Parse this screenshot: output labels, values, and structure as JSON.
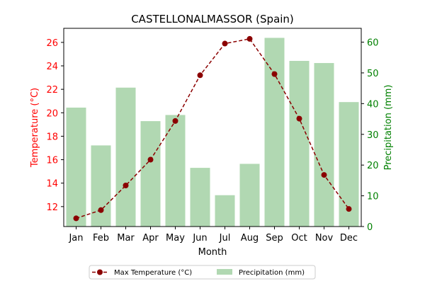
{
  "chart_data": {
    "type": "bar+line",
    "title": "CASTELLONALMASSOR (Spain)",
    "xlabel": "Month",
    "categories": [
      "Jan",
      "Feb",
      "Mar",
      "Apr",
      "May",
      "Jun",
      "Jul",
      "Aug",
      "Sep",
      "Oct",
      "Nov",
      "Dec"
    ],
    "series": [
      {
        "name": "Max Temperature (°C)",
        "kind": "line",
        "axis": "left",
        "color": "#8b0000",
        "values": [
          11.0,
          11.7,
          13.8,
          16.0,
          19.3,
          23.2,
          25.9,
          26.3,
          23.3,
          19.5,
          14.7,
          11.8
        ]
      },
      {
        "name": "Precipitation (mm)",
        "kind": "bar",
        "axis": "right",
        "color": "#b1d8b2",
        "values": [
          38.7,
          26.4,
          45.2,
          34.3,
          36.3,
          19.1,
          10.2,
          20.4,
          61.4,
          53.9,
          53.2,
          40.5
        ]
      }
    ],
    "y_left": {
      "label": "Temperature (°C)",
      "color": "#ff0000",
      "ylim": [
        10.3,
        27.2
      ],
      "ticks": [
        12,
        14,
        16,
        18,
        20,
        22,
        24,
        26
      ]
    },
    "y_right": {
      "label": "Precipitation (mm)",
      "color": "#008000",
      "ylim": [
        0,
        64.5
      ],
      "ticks": [
        0,
        10,
        20,
        30,
        40,
        50,
        60
      ]
    },
    "grid": false,
    "legend_placement": "bottom-center"
  }
}
